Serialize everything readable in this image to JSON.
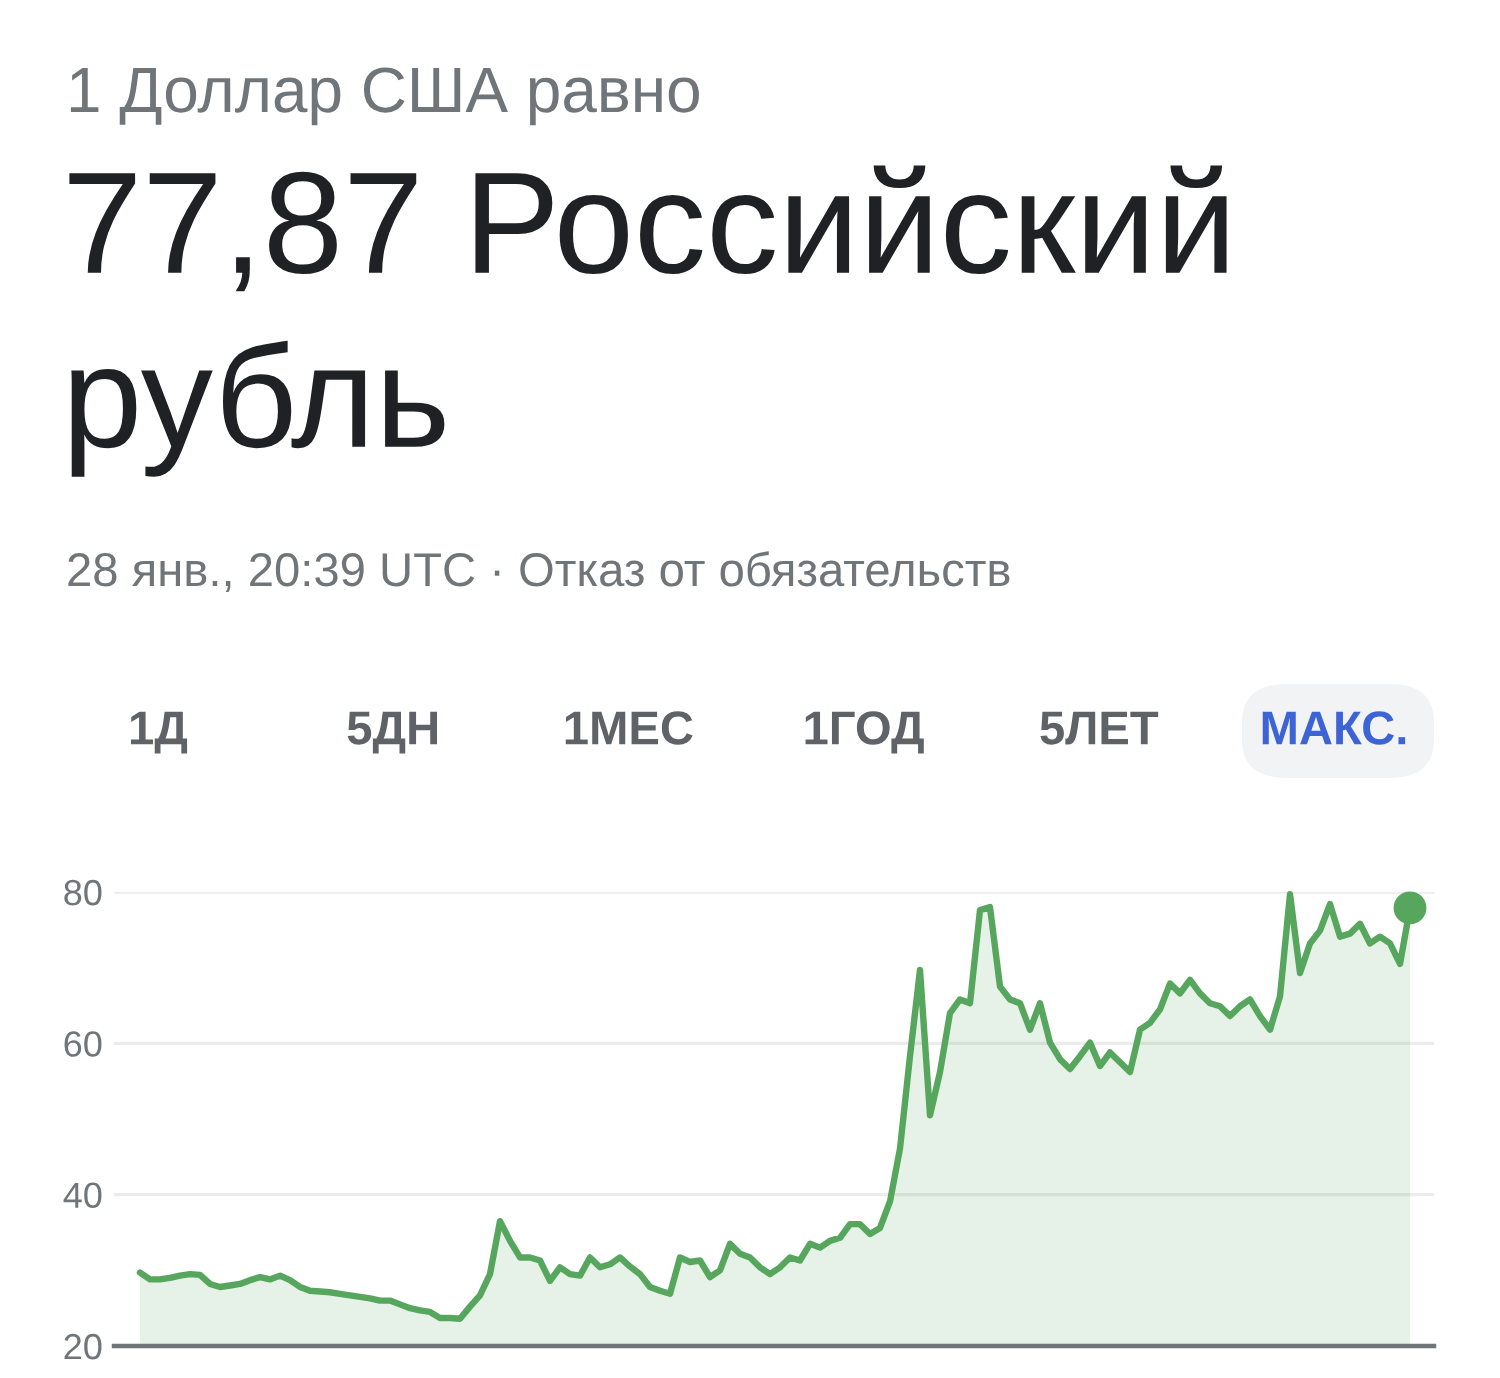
{
  "chart_data": {
    "type": "area",
    "subtitle": "1 Доллар США равно",
    "title": "77,87 Российский рубль",
    "annotations": [
      "28 янв., 20:39 UTC · Отказ от обязательств",
      "1Д",
      "5ДН",
      "1МЕС",
      "1ГОД",
      "5ЛЕТ",
      "МАКС."
    ],
    "categories": [
      null,
      null,
      null,
      null,
      null,
      null,
      null,
      null,
      null,
      null,
      null,
      null,
      null,
      null,
      null,
      null,
      null,
      null,
      null,
      null,
      null,
      null,
      null,
      null,
      null,
      null,
      null,
      null,
      null,
      null,
      null,
      null,
      null,
      null,
      null,
      null,
      null,
      null,
      null,
      null,
      null,
      null,
      null,
      null,
      null,
      null,
      null,
      null,
      null,
      null,
      null,
      null,
      null,
      null,
      null,
      null,
      null,
      null,
      null,
      null,
      null,
      null,
      null,
      null,
      null,
      null,
      null,
      null,
      null,
      null,
      null,
      null,
      null,
      null,
      null,
      null,
      null,
      null,
      null,
      null,
      null,
      null,
      null,
      null,
      null,
      null,
      null,
      null,
      null,
      null,
      null,
      null,
      null,
      null,
      null,
      null,
      null,
      null,
      null,
      null,
      null,
      null,
      null,
      null,
      null,
      null,
      null,
      null,
      null,
      null,
      null,
      null,
      null,
      null,
      null,
      null,
      null,
      null,
      null,
      null,
      null,
      null,
      null,
      null,
      null,
      null,
      null,
      null
    ],
    "series": [
      {
        "color": "#57a65e",
        "values": [
          29.7,
          28.8,
          28.8,
          29.0,
          29.3,
          29.5,
          29.4,
          28.2,
          27.8,
          28.0,
          28.2,
          28.7,
          29.1,
          28.8,
          29.3,
          28.7,
          27.8,
          27.3,
          27.2,
          27.1,
          26.9,
          26.7,
          26.5,
          26.3,
          26.0,
          26.0,
          25.5,
          25.0,
          24.7,
          24.5,
          23.7,
          23.7,
          23.6,
          25.2,
          26.7,
          29.5,
          36.5,
          33.9,
          31.7,
          31.7,
          31.3,
          28.6,
          30.4,
          29.5,
          29.3,
          31.7,
          30.4,
          30.8,
          31.7,
          30.5,
          29.5,
          27.8,
          27.3,
          26.9,
          31.7,
          31.1,
          31.3,
          29.1,
          30.0,
          33.5,
          32.2,
          31.7,
          30.4,
          29.5,
          30.4,
          31.7,
          31.3,
          33.5,
          33.0,
          33.9,
          34.3,
          36.1,
          36.1,
          34.8,
          35.6,
          39.1,
          46.1,
          58.3,
          69.7,
          50.5,
          56.2,
          64.0,
          65.8,
          65.3,
          77.6,
          78.0,
          67.5,
          65.8,
          65.3,
          61.8,
          65.3,
          60.1,
          57.9,
          56.6,
          58.3,
          60.1,
          57.0,
          58.8,
          57.5,
          56.2,
          61.8,
          62.7,
          64.5,
          67.9,
          66.6,
          68.4,
          66.6,
          65.3,
          64.9,
          63.6,
          64.9,
          65.8,
          63.6,
          61.8,
          66.2,
          79.7,
          69.3,
          73.2,
          74.9,
          78.4,
          74.1,
          74.5,
          75.8,
          73.2,
          74.1,
          73.2,
          70.5,
          77.9
        ]
      },
      {
        "type": "scatter",
        "color": "#57a65e",
        "marker": "circle",
        "values": [
          null,
          null,
          null,
          null,
          null,
          null,
          null,
          null,
          null,
          null,
          null,
          null,
          null,
          null,
          null,
          null,
          null,
          null,
          null,
          null,
          null,
          null,
          null,
          null,
          null,
          null,
          null,
          null,
          null,
          null,
          null,
          null,
          null,
          null,
          null,
          null,
          null,
          null,
          null,
          null,
          null,
          null,
          null,
          null,
          null,
          null,
          null,
          null,
          null,
          null,
          null,
          null,
          null,
          null,
          null,
          null,
          null,
          null,
          null,
          null,
          null,
          null,
          null,
          null,
          null,
          null,
          null,
          null,
          null,
          null,
          null,
          null,
          null,
          null,
          null,
          null,
          null,
          null,
          null,
          null,
          null,
          null,
          null,
          null,
          null,
          null,
          null,
          null,
          null,
          null,
          null,
          null,
          null,
          null,
          null,
          null,
          null,
          null,
          null,
          null,
          null,
          null,
          null,
          null,
          null,
          null,
          null,
          null,
          null,
          null,
          null,
          null,
          null,
          null,
          null,
          null,
          null,
          null,
          null,
          null,
          null,
          null,
          null,
          null,
          null,
          null,
          null,
          77.9
        ]
      }
    ],
    "ylim": [
      20,
      80
    ],
    "yticks": [
      20,
      40,
      60,
      80
    ],
    "grid": "y"
  }
}
